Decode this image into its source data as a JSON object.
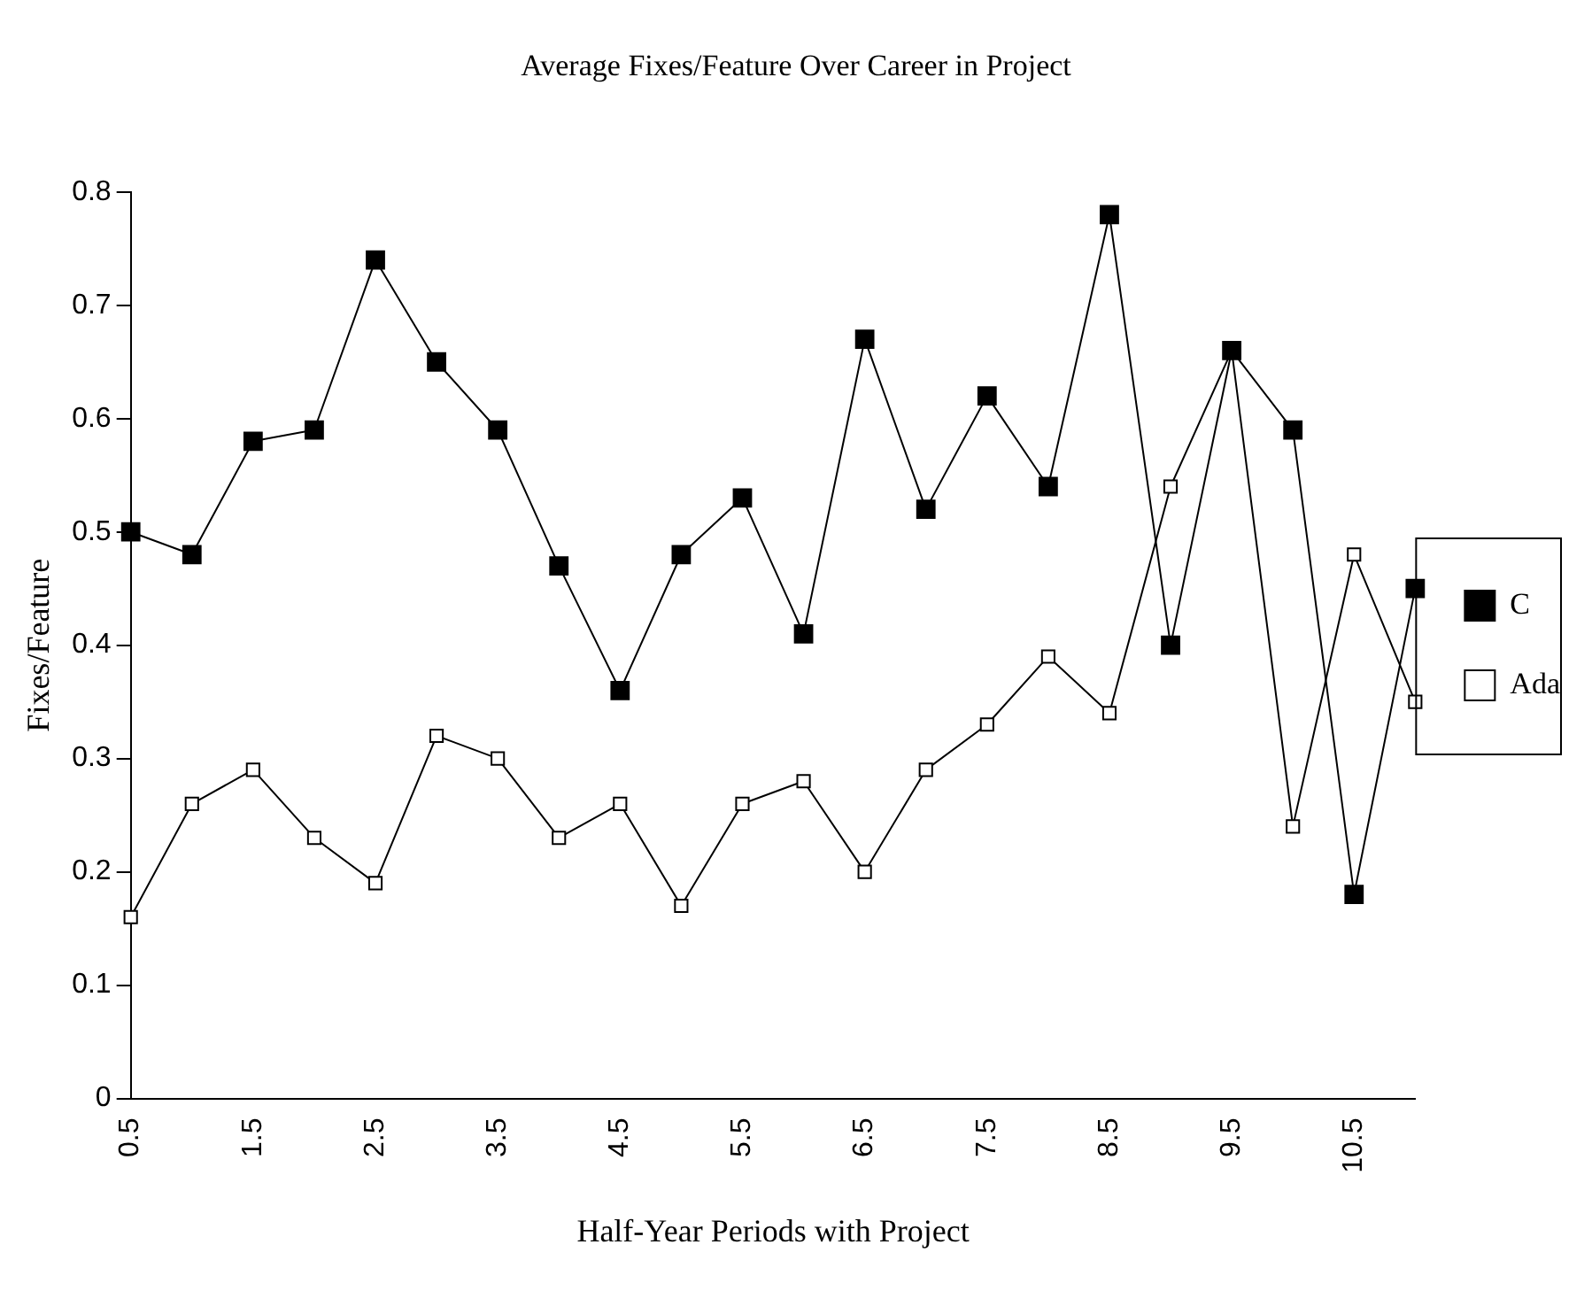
{
  "chart_data": {
    "type": "line",
    "title": "Average Fixes/Feature Over Career in Project",
    "xlabel": "Half-Year Periods with Project",
    "ylabel": "Fixes/Feature",
    "categories": [
      "0.5",
      null,
      "1.5",
      null,
      "2.5",
      null,
      "3.5",
      null,
      "4.5",
      null,
      "5.5",
      null,
      "6.5",
      null,
      "7.5",
      null,
      "8.5",
      null,
      "9.5",
      null,
      "10.5",
      null
    ],
    "series": [
      {
        "name": "C",
        "color": "#000000",
        "values": [
          0.5,
          0.48,
          0.58,
          0.59,
          0.74,
          0.65,
          0.59,
          0.47,
          0.36,
          0.48,
          0.53,
          0.41,
          0.67,
          0.52,
          0.62,
          0.54,
          0.78,
          0.4,
          0.66,
          0.59,
          0.18,
          0.45
        ]
      },
      {
        "name": "Ada",
        "color": "#000000",
        "values": [
          0.16,
          0.26,
          0.29,
          0.23,
          0.19,
          0.32,
          0.3,
          0.23,
          0.26,
          0.17,
          0.26,
          0.28,
          0.2,
          0.29,
          0.33,
          0.39,
          0.34,
          0.54,
          0.66,
          0.24,
          0.48,
          0.35
        ]
      }
    ],
    "ylim": [
      0,
      0.8
    ],
    "yticks": [
      0,
      0.1,
      0.2,
      0.3,
      0.4,
      0.5,
      0.6,
      0.7,
      0.8
    ],
    "grid": false,
    "legend": "right",
    "marker": "square",
    "line_style": "solid"
  }
}
